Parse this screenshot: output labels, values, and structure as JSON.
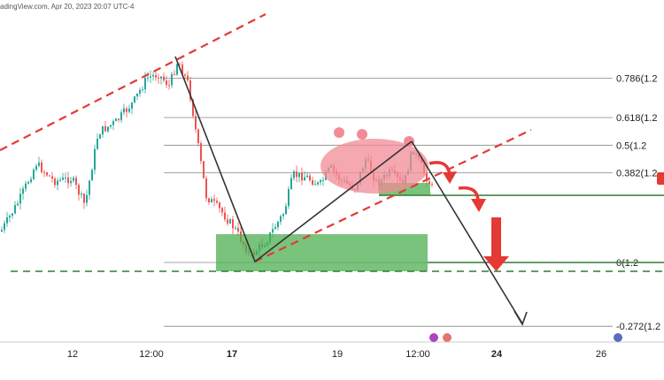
{
  "header": {
    "watermark": "adingView.com, Apr 20, 2023 20:07 UTC-4"
  },
  "colors": {
    "bull": "#26a69a",
    "bear": "#ef5350",
    "fib_line": "#888888",
    "green_zone": "#4caf50",
    "trend_dash": "#e53935",
    "arrow_red": "#e53935",
    "path_line": "#333333",
    "ellipse": "#f28b96"
  },
  "chart_data": {
    "type": "candlestick",
    "title": "",
    "xlabel": "",
    "ylabel": "",
    "x_ticks": [
      {
        "label": "12",
        "bold": false
      },
      {
        "label": "12:00",
        "bold": false
      },
      {
        "label": "17",
        "bold": true
      },
      {
        "label": "19",
        "bold": false
      },
      {
        "label": "12:00",
        "bold": false
      },
      {
        "label": "24",
        "bold": true
      },
      {
        "label": "26",
        "bold": false
      }
    ],
    "fib_levels": [
      {
        "ratio": 0.786,
        "label": "0.786(1.2"
      },
      {
        "ratio": 0.618,
        "label": "0.618(1.2"
      },
      {
        "ratio": 0.5,
        "label": "0.5(1.2"
      },
      {
        "ratio": 0.382,
        "label": "0.382(1.2"
      },
      {
        "ratio": 0,
        "label": "0(1.2"
      },
      {
        "ratio": -0.272,
        "label": "-0.272(1.2"
      }
    ],
    "grid": false,
    "legend": "none"
  }
}
